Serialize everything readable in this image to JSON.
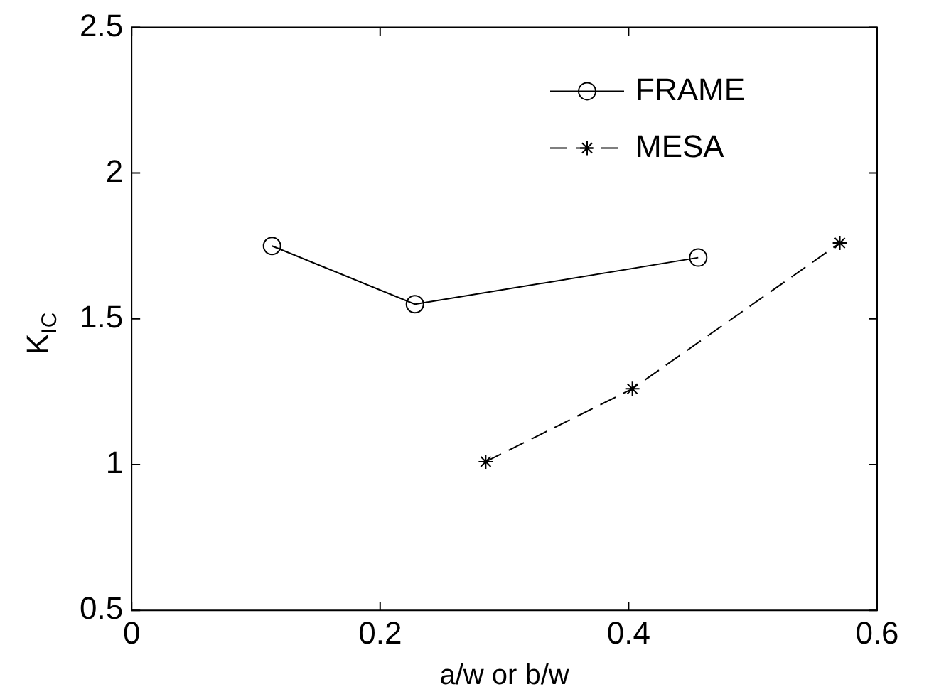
{
  "chart_data": {
    "type": "line",
    "xlabel": "a/w or b/w",
    "ylabel": "K$_{IC}$",
    "xlim": [
      0,
      0.6
    ],
    "xticks": [
      0,
      0.2,
      0.4,
      0.6
    ],
    "ylim": [
      0.5,
      2.5
    ],
    "yticks": [
      0.5,
      1,
      1.5,
      2,
      2.5
    ],
    "legend": "top right",
    "series": [
      {
        "name": "FRAME",
        "color": "#000000",
        "marker": "circle",
        "line_style": "solid",
        "x": [
          0.113,
          0.228,
          0.456
        ],
        "values": [
          1.75,
          1.55,
          1.71
        ]
      },
      {
        "name": "MESA",
        "color": "#000000",
        "marker": "cross",
        "line_style": "dashed",
        "x": [
          0.285,
          0.403,
          0.57
        ],
        "values": [
          1.01,
          1.26,
          1.76
        ]
      }
    ]
  }
}
